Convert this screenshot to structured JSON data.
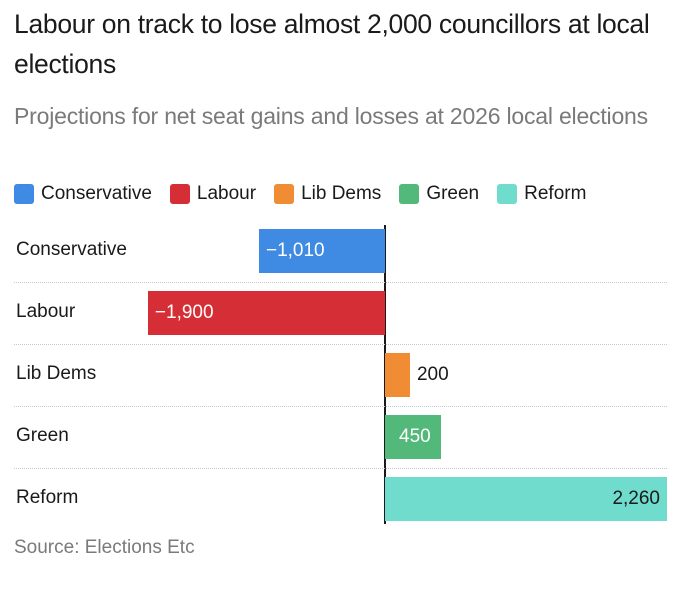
{
  "title": "Labour on track to lose almost 2,000 councillors at local elections",
  "subtitle": "Projections for net seat gains and losses at 2026 local elections",
  "source": "Source: Elections Etc",
  "chart_data": {
    "type": "bar",
    "orientation": "horizontal",
    "categories": [
      "Conservative",
      "Labour",
      "Lib Dems",
      "Green",
      "Reform"
    ],
    "values": [
      -1010,
      -1900,
      200,
      450,
      2260
    ],
    "value_labels": [
      "−1,010",
      "−1,900",
      "200",
      "450",
      "2,260"
    ],
    "colors": [
      "#3f8ae2",
      "#d62e36",
      "#f08c33",
      "#52b97a",
      "#6fdccd"
    ],
    "legend": [
      "Conservative",
      "Labour",
      "Lib Dems",
      "Green",
      "Reform"
    ],
    "legend_placement": "top-left",
    "xlim": [
      -2830,
      2260
    ],
    "grid": false
  }
}
